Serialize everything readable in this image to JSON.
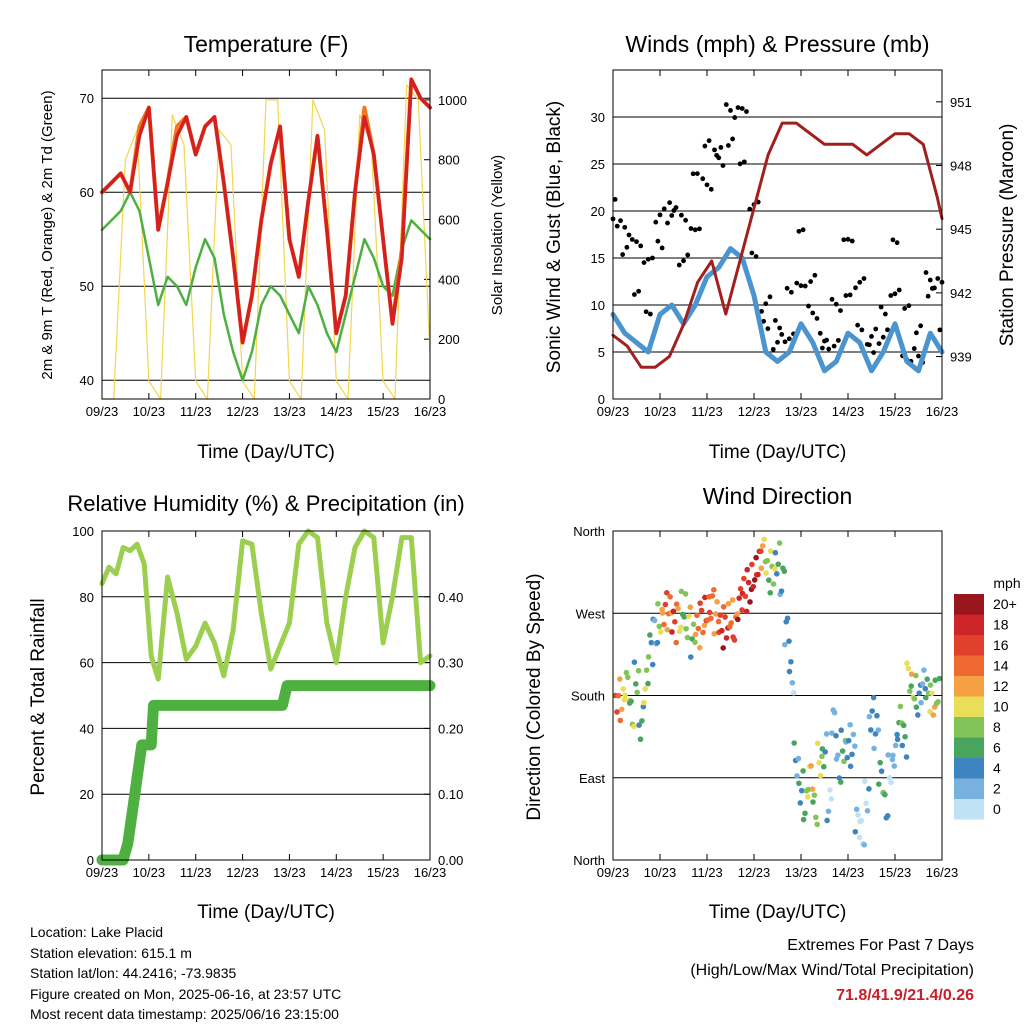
{
  "x_ticks": [
    "09/23",
    "10/23",
    "11/23",
    "12/23",
    "13/23",
    "14/23",
    "15/23",
    "16/23"
  ],
  "colors": {
    "red": "#d42020",
    "orange": "#f07820",
    "green": "#4db040",
    "yellow": "#f3d64c",
    "blue": "#4a94d0",
    "black": "#000000",
    "maroon": "#a02020",
    "lightgreen": "#9ccf50",
    "precip": "#4db040",
    "extremes": "#c8202a"
  },
  "chart_data": [
    {
      "id": "temperature",
      "type": "line",
      "title": "Temperature (F)",
      "xlabel": "Time (Day/UTC)",
      "ylabel": "2m & 9m T (Red, Orange) & 2m Td (Green)",
      "y2label": "Solar Insolation (Yellow)",
      "ylim": [
        38,
        73
      ],
      "y_ticks": [
        40,
        50,
        60,
        70
      ],
      "y2lim": [
        0,
        1100
      ],
      "y2_ticks": [
        0,
        200,
        400,
        600,
        800,
        1000
      ],
      "xlim": [
        0,
        7
      ],
      "grid": true,
      "series": [
        {
          "x": [
            0,
            0.2,
            0.4,
            0.6,
            0.8,
            1.0,
            1.2,
            1.4,
            1.6,
            1.8,
            2.0,
            2.2,
            2.4,
            2.6,
            2.8,
            3.0,
            3.2,
            3.4,
            3.6,
            3.8,
            4.0,
            4.2,
            4.4,
            4.6,
            4.8,
            5.0,
            5.2,
            5.4,
            5.6,
            5.8,
            6.0,
            6.2,
            6.4,
            6.6,
            6.8,
            7.0
          ],
          "values": [
            60,
            61,
            62,
            60,
            66,
            69,
            56,
            61,
            66,
            68,
            64,
            67,
            68,
            61,
            53,
            44,
            49,
            57,
            63,
            67,
            55,
            51,
            59,
            66,
            56,
            45,
            49,
            60,
            68,
            64,
            55,
            46,
            53,
            72,
            70,
            69
          ]
        },
        {
          "x": [
            0,
            0.2,
            0.4,
            0.6,
            0.8,
            1.0,
            1.2,
            1.4,
            1.6,
            1.8,
            2.0,
            2.2,
            2.4,
            2.6,
            2.8,
            3.0,
            3.2,
            3.4,
            3.6,
            3.8,
            4.0,
            4.2,
            4.4,
            4.6,
            4.8,
            5.0,
            5.2,
            5.4,
            5.6,
            5.8,
            6.0,
            6.2,
            6.4,
            6.6,
            6.8,
            7.0
          ],
          "values": [
            60,
            61,
            62,
            60,
            67,
            69,
            56,
            61,
            67,
            68,
            64,
            67,
            68,
            61,
            53,
            44,
            49,
            57,
            63,
            67,
            55,
            51,
            59,
            66,
            56,
            45,
            49,
            60,
            69,
            64,
            55,
            46,
            54,
            72,
            70,
            69
          ]
        },
        {
          "x": [
            0,
            0.2,
            0.4,
            0.6,
            0.8,
            1.0,
            1.2,
            1.4,
            1.6,
            1.8,
            2.0,
            2.2,
            2.4,
            2.6,
            2.8,
            3.0,
            3.2,
            3.4,
            3.6,
            3.8,
            4.0,
            4.2,
            4.4,
            4.6,
            4.8,
            5.0,
            5.2,
            5.4,
            5.6,
            5.8,
            6.0,
            6.2,
            6.4,
            6.6,
            6.8,
            7.0
          ],
          "values": [
            56,
            57,
            58,
            60,
            58,
            53,
            48,
            51,
            50,
            48,
            52,
            55,
            53,
            47,
            43,
            40,
            43,
            48,
            50,
            49,
            47,
            45,
            50,
            48,
            45,
            43,
            47,
            51,
            55,
            53,
            50,
            49,
            54,
            57,
            56,
            55
          ]
        },
        {
          "x": [
            0,
            0.25,
            0.5,
            0.75,
            1.0,
            1.25,
            1.5,
            1.75,
            2.0,
            2.25,
            2.5,
            2.75,
            3.0,
            3.25,
            3.5,
            3.75,
            4.0,
            4.25,
            4.5,
            4.75,
            5.0,
            5.25,
            5.5,
            5.75,
            6.0,
            6.25,
            6.5,
            6.75,
            7.0
          ],
          "values": [
            0,
            0,
            800,
            900,
            60,
            0,
            950,
            850,
            60,
            0,
            900,
            850,
            60,
            0,
            1000,
            1000,
            60,
            0,
            1000,
            900,
            60,
            0,
            950,
            850,
            60,
            0,
            1050,
            1000,
            150
          ]
        }
      ]
    },
    {
      "id": "winds",
      "type": "line",
      "title": "Winds (mph) & Pressure (mb)",
      "xlabel": "Time (Day/UTC)",
      "ylabel": "Sonic Wind & Gust (Blue, Black)",
      "y2label": "Station Pressure (Maroon)",
      "ylim": [
        0,
        35
      ],
      "y_ticks": [
        0,
        5,
        10,
        15,
        20,
        25,
        30
      ],
      "y2lim": [
        937,
        952.5
      ],
      "y2_ticks": [
        939,
        942,
        945,
        948,
        951
      ],
      "xlim": [
        0,
        7
      ],
      "grid": true,
      "series": [
        {
          "x": [
            0,
            0.25,
            0.5,
            0.75,
            1.0,
            1.25,
            1.5,
            1.75,
            2.0,
            2.25,
            2.5,
            2.75,
            3.0,
            3.25,
            3.5,
            3.75,
            4.0,
            4.25,
            4.5,
            4.75,
            5.0,
            5.25,
            5.5,
            5.75,
            6.0,
            6.25,
            6.5,
            6.75,
            7.0
          ],
          "values": [
            9,
            7,
            6,
            5,
            9,
            10,
            8,
            10,
            13,
            14,
            16,
            15,
            11,
            5,
            4,
            5,
            8,
            6,
            3,
            4,
            7,
            6,
            3,
            5,
            8,
            4,
            3,
            7,
            5
          ]
        },
        {
          "x": [
            0,
            0.25,
            0.5,
            0.75,
            1.0,
            1.25,
            1.5,
            1.75,
            2.0,
            2.25,
            2.5,
            2.75,
            3.0,
            3.25,
            3.5,
            3.75,
            4.0,
            4.25,
            4.5,
            4.75,
            5.0,
            5.25,
            5.5,
            5.75,
            6.0,
            6.25,
            6.5,
            6.75,
            7.0
          ],
          "values": [
            20,
            17,
            14,
            12,
            18,
            20,
            17,
            21,
            25,
            26,
            29,
            28,
            18,
            9,
            7,
            9,
            15,
            11,
            6,
            8,
            14,
            10,
            6,
            8,
            14,
            7,
            6,
            12,
            10
          ]
        },
        {
          "x": [
            0,
            0.3,
            0.6,
            0.9,
            1.2,
            1.5,
            1.8,
            2.1,
            2.4,
            2.7,
            3.0,
            3.3,
            3.6,
            3.9,
            4.2,
            4.5,
            4.8,
            5.1,
            5.4,
            5.7,
            6.0,
            6.3,
            6.6,
            6.9,
            7.0
          ],
          "values": [
            940.0,
            939.5,
            938.5,
            938.5,
            939.0,
            940.5,
            942.5,
            943.5,
            941.0,
            943.5,
            946.0,
            948.5,
            950.0,
            950.0,
            949.5,
            949.0,
            949.0,
            949.0,
            948.5,
            949.0,
            949.5,
            949.5,
            949.0,
            946.5,
            945.5
          ]
        }
      ]
    },
    {
      "id": "humidity",
      "type": "line",
      "title": "Relative Humidity (%) & Precipitation (in)",
      "xlabel": "Time (Day/UTC)",
      "ylabel": "Percent & Total Rainfall",
      "ylim": [
        0,
        100
      ],
      "y_ticks": [
        0,
        20,
        40,
        60,
        80,
        100
      ],
      "y2lim": [
        0,
        0.5
      ],
      "y2_ticks": [
        "0.00",
        "0.10",
        "0.20",
        "0.30",
        "0.40"
      ],
      "xlim": [
        0,
        7
      ],
      "grid": true,
      "series": [
        {
          "x": [
            0,
            0.15,
            0.3,
            0.45,
            0.6,
            0.75,
            0.9,
            1.05,
            1.2,
            1.4,
            1.6,
            1.8,
            2.0,
            2.2,
            2.4,
            2.6,
            2.8,
            3.0,
            3.2,
            3.4,
            3.6,
            3.8,
            4.0,
            4.2,
            4.4,
            4.6,
            4.8,
            5.0,
            5.2,
            5.4,
            5.6,
            5.8,
            6.0,
            6.2,
            6.4,
            6.6,
            6.8,
            7.0
          ],
          "values": [
            84,
            89,
            87,
            95,
            94,
            96,
            90,
            62,
            55,
            86,
            75,
            61,
            65,
            72,
            66,
            56,
            70,
            97,
            96,
            75,
            58,
            65,
            72,
            96,
            100,
            98,
            72,
            60,
            80,
            95,
            100,
            98,
            66,
            80,
            98,
            98,
            60,
            62
          ]
        },
        {
          "x": [
            0,
            0.45,
            0.55,
            0.65,
            0.75,
            0.85,
            0.95,
            1.05,
            1.1,
            2.0,
            3.0,
            3.85,
            3.95,
            4.5,
            5.0,
            6.0,
            7.0
          ],
          "values": [
            0,
            0,
            5,
            15,
            25,
            35,
            35,
            35,
            47,
            47,
            47,
            47,
            53,
            53,
            53,
            53,
            53
          ]
        }
      ]
    },
    {
      "id": "wind_direction",
      "type": "scatter",
      "title": "Wind Direction",
      "xlabel": "Time (Day/UTC)",
      "ylabel": "Direction (Colored By Speed)",
      "y_ticks": [
        "North",
        "East",
        "South",
        "West",
        "North"
      ],
      "y_values": [
        0,
        90,
        180,
        270,
        360
      ],
      "xlim": [
        0,
        7
      ],
      "grid": true,
      "legend": {
        "title": "mph",
        "position": "right",
        "labels": [
          "20+",
          "18",
          "16",
          "14",
          "12",
          "10",
          "8",
          "6",
          "4",
          "2",
          "0"
        ],
        "colors": [
          "#99161e",
          "#cc2428",
          "#e0402c",
          "#ef6a30",
          "#f5a043",
          "#e8de58",
          "#82c45a",
          "#49a45e",
          "#3e84bf",
          "#77b2df",
          "#bfe2f5"
        ]
      },
      "series": [
        {
          "name": "",
          "x": [
            0.1,
            0.2,
            0.3,
            0.4,
            0.5,
            0.6,
            0.7,
            0.8,
            0.9,
            1.0,
            1.1,
            1.2,
            1.3,
            1.4,
            1.5,
            1.6,
            1.7,
            1.8,
            1.9,
            2.0,
            2.1,
            2.2,
            2.3,
            2.4,
            2.5,
            2.6,
            2.7,
            2.8,
            2.9,
            3.0,
            3.1,
            3.2,
            3.3,
            3.4,
            3.5,
            3.6,
            3.7,
            3.8,
            3.9,
            4.0,
            4.1,
            4.2,
            4.3,
            4.4,
            4.5,
            4.6,
            4.7,
            4.8,
            4.9,
            5.0,
            5.1,
            5.2,
            5.3,
            5.4,
            5.5,
            5.6,
            5.7,
            5.8,
            5.9,
            6.0,
            6.1,
            6.2,
            6.3,
            6.4,
            6.5,
            6.6,
            6.7,
            6.8,
            6.9
          ],
          "values": [
            180,
            170,
            190,
            160,
            200,
            150,
            190,
            230,
            250,
            265,
            275,
            270,
            255,
            265,
            280,
            260,
            240,
            250,
            265,
            275,
            280,
            265,
            250,
            260,
            270,
            255,
            280,
            290,
            300,
            315,
            325,
            335,
            310,
            320,
            330,
            305,
            250,
            200,
            110,
            80,
            60,
            90,
            55,
            110,
            120,
            60,
            150,
            100,
            125,
            130,
            120,
            40,
            30,
            70,
            160,
            140,
            90,
            60,
            100,
            120,
            150,
            130,
            200,
            190,
            175,
            190,
            180,
            175,
            185
          ],
          "speed": [
            14,
            12,
            10,
            8,
            6,
            4,
            8,
            6,
            4,
            10,
            14,
            12,
            16,
            12,
            8,
            10,
            6,
            12,
            14,
            16,
            16,
            14,
            18,
            16,
            12,
            14,
            18,
            18,
            20,
            18,
            16,
            10,
            8,
            10,
            6,
            4,
            3,
            2,
            4,
            6,
            8,
            10,
            6,
            8,
            4,
            2,
            3,
            4,
            6,
            2,
            3,
            2,
            1,
            2,
            3,
            2,
            4,
            6,
            2,
            3,
            6,
            4,
            8,
            10,
            6,
            4,
            8,
            10,
            6
          ]
        }
      ]
    }
  ],
  "footer": {
    "location": "Location: Lake Placid",
    "elevation": "Station elevation: 615.1 m",
    "latlon": "Station lat/lon: 44.2416; -73.9835",
    "created": "Figure created on Mon, 2025-06-16, at 23:57 UTC",
    "recent": "Most recent data timestamp: 2025/06/16 23:15:00"
  },
  "extremes": {
    "heading": "Extremes For Past 7 Days",
    "subheading": "(High/Low/Max Wind/Total Precipitation)",
    "values": "71.8/41.9/21.4/0.26"
  }
}
